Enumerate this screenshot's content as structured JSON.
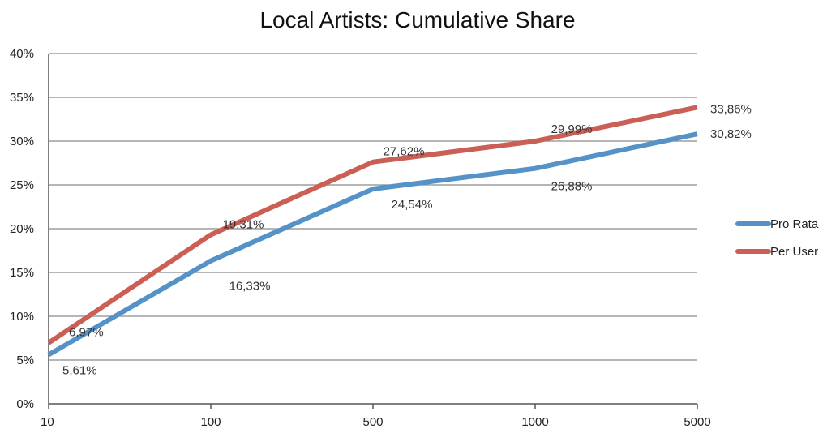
{
  "chart_data": {
    "type": "line",
    "title": "Local Artists: Cumulative Share",
    "x": [
      "10",
      "100",
      "500",
      "1000",
      "5000"
    ],
    "y_ticks": [
      "0%",
      "5%",
      "10%",
      "15%",
      "20%",
      "25%",
      "30%",
      "35%",
      "40%"
    ],
    "ylim": [
      0,
      40
    ],
    "grid": true,
    "legend_position": "right",
    "series": [
      {
        "name": "Pro Rata",
        "color": "#5592c8",
        "values": [
          5.61,
          16.33,
          24.54,
          26.88,
          30.82
        ],
        "labels": [
          "5,61%",
          "16,33%",
          "24,54%",
          "26,88%",
          "30,82%"
        ]
      },
      {
        "name": "Per User",
        "color": "#cb5f55",
        "values": [
          6.97,
          19.31,
          27.62,
          29.99,
          33.86
        ],
        "labels": [
          "6,97%",
          "19,31%",
          "27,62%",
          "29,99%",
          "33,86%"
        ]
      }
    ]
  }
}
